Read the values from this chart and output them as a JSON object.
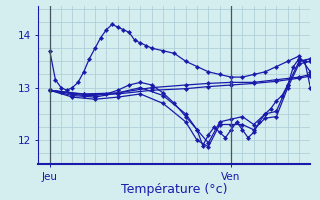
{
  "background_color": "#d4eef0",
  "grid_color": "#b0cfd8",
  "line_color": "#1a1aaa",
  "marker_color": "#1a1aaa",
  "xlabel": "Température (°c)",
  "xlabel_fontsize": 9,
  "yticks": [
    12,
    13,
    14
  ],
  "ylim": [
    11.55,
    14.55
  ],
  "xlim": [
    0,
    48
  ],
  "jeu_x": 2,
  "ven_x": 34,
  "series": [
    [
      2,
      13.7,
      3,
      13.15,
      4,
      13.0,
      5,
      12.95,
      6,
      13.0,
      7,
      13.1,
      8,
      13.3,
      9,
      13.55,
      10,
      13.75,
      11,
      13.95,
      12,
      14.1,
      13,
      14.2,
      14,
      14.15,
      15,
      14.1,
      16,
      14.05,
      17,
      13.9,
      18,
      13.85,
      19,
      13.8,
      20,
      13.75,
      22,
      13.7,
      24,
      13.65,
      26,
      13.5,
      28,
      13.4,
      30,
      13.3,
      32,
      13.25,
      34,
      13.2,
      36,
      13.2,
      38,
      13.25,
      40,
      13.3,
      42,
      13.4,
      44,
      13.5,
      46,
      13.6,
      48,
      13.3
    ],
    [
      2,
      12.95,
      4,
      12.92,
      6,
      12.88,
      8,
      12.85,
      10,
      12.85,
      12,
      12.88,
      14,
      12.95,
      16,
      13.05,
      18,
      13.1,
      20,
      13.05,
      22,
      12.9,
      24,
      12.7,
      26,
      12.45,
      28,
      12.2,
      29,
      11.9,
      30,
      12.1,
      31,
      12.25,
      32,
      12.15,
      33,
      12.05,
      34,
      12.2,
      35,
      12.35,
      36,
      12.2,
      37,
      12.05,
      38,
      12.15,
      39,
      12.35,
      40,
      12.5,
      41,
      12.6,
      42,
      12.75,
      43,
      12.85,
      44,
      13.05,
      45,
      13.4,
      46,
      13.55,
      47,
      13.5,
      48,
      13.0
    ],
    [
      2,
      12.95,
      6,
      12.85,
      10,
      12.82,
      14,
      12.9,
      18,
      13.0,
      22,
      12.85,
      26,
      12.5,
      28,
      12.2,
      30,
      11.95,
      32,
      12.35,
      34,
      12.4,
      36,
      12.45,
      38,
      12.3,
      40,
      12.5,
      42,
      12.55,
      44,
      13.05,
      46,
      13.5,
      48,
      13.55
    ],
    [
      2,
      12.95,
      6,
      12.82,
      10,
      12.78,
      14,
      12.82,
      18,
      12.88,
      22,
      12.7,
      26,
      12.35,
      28,
      12.0,
      30,
      11.88,
      32,
      12.3,
      34,
      12.3,
      36,
      12.3,
      38,
      12.2,
      40,
      12.42,
      42,
      12.45,
      44,
      13.0,
      46,
      13.45,
      48,
      13.5
    ],
    [
      2,
      12.95,
      8,
      12.88,
      14,
      12.9,
      20,
      13.0,
      26,
      13.05,
      30,
      13.08,
      34,
      13.1,
      38,
      13.1,
      42,
      13.15,
      46,
      13.2,
      48,
      13.25
    ],
    [
      2,
      12.95,
      8,
      12.87,
      14,
      12.88,
      20,
      12.95,
      26,
      12.98,
      30,
      13.02,
      34,
      13.05,
      38,
      13.08,
      42,
      13.12,
      46,
      13.18,
      48,
      13.22
    ]
  ]
}
